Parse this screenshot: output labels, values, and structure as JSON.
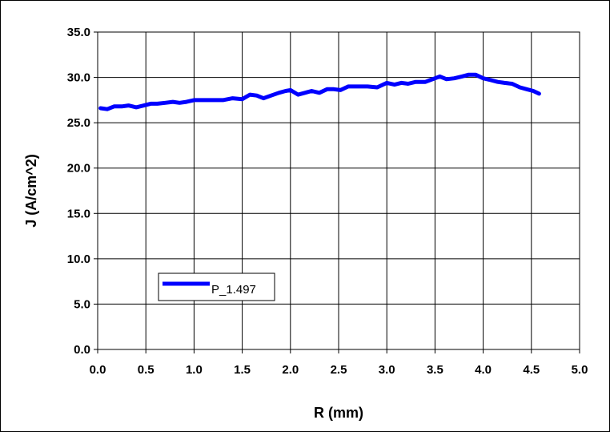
{
  "chart_data": {
    "type": "line",
    "title": "",
    "xlabel": "R (mm)",
    "ylabel": "J (A/cm^2)",
    "xlim": [
      0.0,
      5.0
    ],
    "ylim": [
      0.0,
      35.0
    ],
    "x_ticks": [
      "0.0",
      "0.5",
      "1.0",
      "1.5",
      "2.0",
      "2.5",
      "3.0",
      "3.5",
      "4.0",
      "4.5",
      "5.0"
    ],
    "y_ticks": [
      "0.0",
      "5.0",
      "10.0",
      "15.0",
      "20.0",
      "25.0",
      "30.0",
      "35.0"
    ],
    "grid": true,
    "legend_position": "lower-left",
    "series": [
      {
        "name": "P_1.497",
        "color": "#0000ff",
        "x": [
          0.03,
          0.1,
          0.17,
          0.25,
          0.32,
          0.4,
          0.48,
          0.55,
          0.62,
          0.7,
          0.78,
          0.85,
          0.92,
          1.0,
          1.1,
          1.2,
          1.3,
          1.4,
          1.5,
          1.58,
          1.65,
          1.72,
          1.8,
          1.88,
          1.95,
          2.0,
          2.08,
          2.15,
          2.22,
          2.3,
          2.38,
          2.45,
          2.52,
          2.6,
          2.7,
          2.8,
          2.9,
          3.0,
          3.08,
          3.15,
          3.22,
          3.3,
          3.4,
          3.5,
          3.55,
          3.62,
          3.7,
          3.78,
          3.85,
          3.92,
          4.0,
          4.08,
          4.15,
          4.22,
          4.3,
          4.38,
          4.45,
          4.52,
          4.58
        ],
        "y": [
          26.6,
          26.5,
          26.8,
          26.8,
          26.9,
          26.7,
          26.9,
          27.1,
          27.1,
          27.2,
          27.3,
          27.2,
          27.3,
          27.5,
          27.5,
          27.5,
          27.5,
          27.7,
          27.6,
          28.1,
          28.0,
          27.7,
          28.0,
          28.3,
          28.5,
          28.6,
          28.1,
          28.3,
          28.5,
          28.3,
          28.7,
          28.7,
          28.6,
          29.0,
          29.0,
          29.0,
          28.9,
          29.4,
          29.2,
          29.4,
          29.3,
          29.5,
          29.5,
          29.9,
          30.1,
          29.8,
          29.9,
          30.1,
          30.3,
          30.3,
          29.9,
          29.7,
          29.5,
          29.4,
          29.3,
          28.9,
          28.7,
          28.5,
          28.2
        ]
      }
    ]
  }
}
